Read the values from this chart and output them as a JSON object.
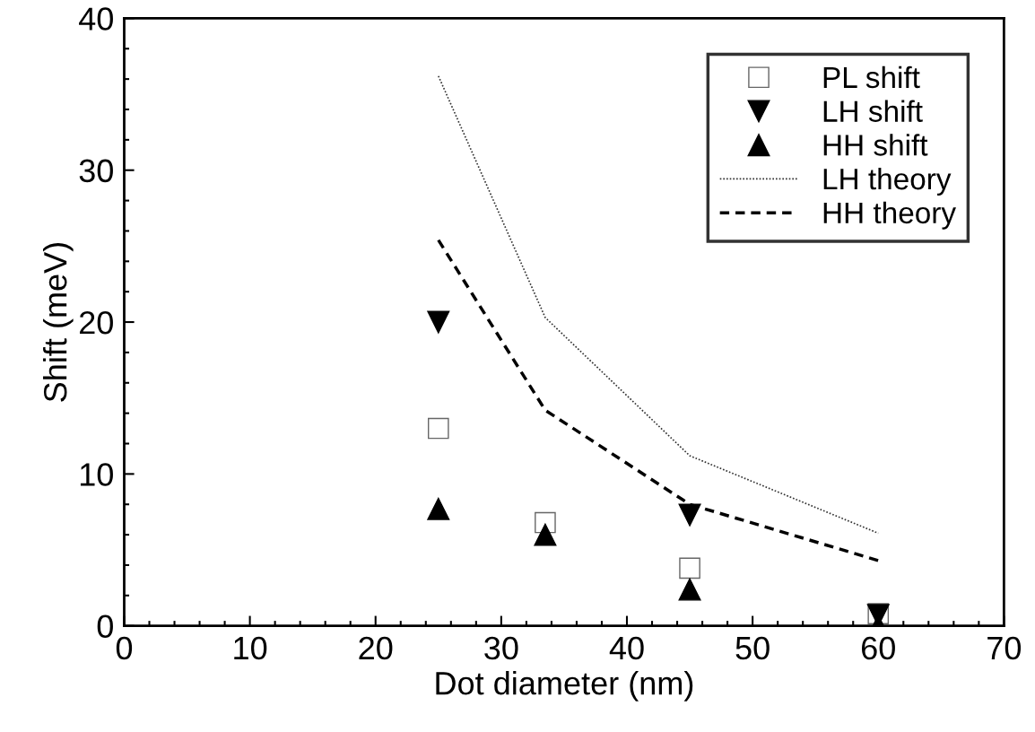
{
  "chart_data": {
    "type": "scatter",
    "xlabel": "Dot diameter (nm)",
    "ylabel": "Shift (meV)",
    "x": [
      25,
      33.5,
      45,
      60
    ],
    "series": [
      {
        "name": "PL shift",
        "color": "#666666",
        "marker": "square",
        "values": [
          13,
          6.8,
          3.8,
          0.8
        ]
      },
      {
        "name": "LH shift",
        "color": "#000000",
        "marker": "triangle_down",
        "values": [
          20,
          null,
          7.3,
          0.7
        ]
      },
      {
        "name": "HH shift",
        "color": "#000000",
        "marker": "triangle",
        "values": [
          7.7,
          6,
          2.4,
          0
        ]
      },
      {
        "name": "LH theory",
        "type": "line",
        "color": "#333333",
        "line_style": "dotted",
        "marker": "none",
        "values": [
          36.2,
          20.3,
          11.2,
          6.1
        ]
      },
      {
        "name": "HH theory",
        "type": "line",
        "color": "#000000",
        "line_style": "dashed",
        "marker": "none",
        "values": [
          25.4,
          14.2,
          8,
          4.3
        ]
      }
    ],
    "xlim": [
      0,
      70
    ],
    "ylim": [
      0,
      40
    ],
    "xticks": [
      0,
      10,
      20,
      30,
      40,
      50,
      60,
      70
    ],
    "yticks": [
      0,
      10,
      20,
      30,
      40
    ],
    "grid": false,
    "legend": "top right"
  }
}
